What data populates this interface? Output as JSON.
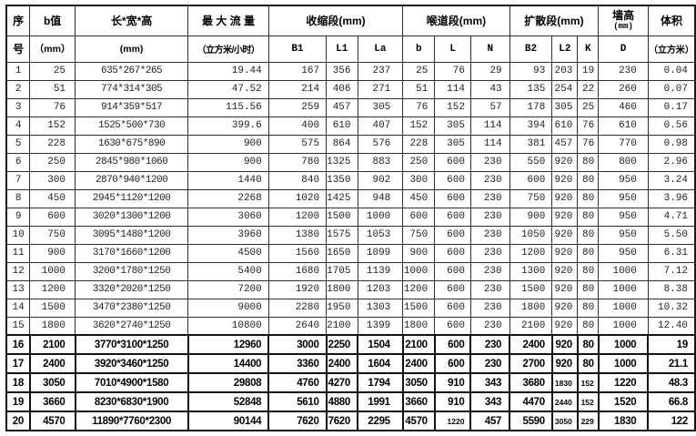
{
  "table": {
    "title": "venturi-flume-specification-table",
    "header_row1": [
      {
        "label": "序"
      },
      {
        "label": "b值"
      },
      {
        "label": "长*宽*高"
      },
      {
        "label": "最 大 流 量"
      },
      {
        "label": "收缩段(mm)",
        "span": 3
      },
      {
        "label": "喉道段(mm)",
        "span": 3
      },
      {
        "label": "扩散段(mm)",
        "span": 3
      },
      {
        "label": "墙高",
        "sub": "(mm)"
      },
      {
        "label": "体积"
      }
    ],
    "header_row2": [
      "号",
      "（mm）",
      "(mm)",
      "（立方米/小时）",
      "B1",
      "L1",
      "La",
      "b",
      "L",
      "N",
      "B2",
      "L2",
      "K",
      "D",
      "（立方米）"
    ],
    "bold_from_row": 16,
    "rows": [
      [
        "1",
        "25",
        "635*267*265",
        "19.44",
        "167",
        "356",
        "237",
        "25",
        "76",
        "29",
        "93",
        "203",
        "19",
        "230",
        "0.04"
      ],
      [
        "2",
        "51",
        "774*314*305",
        "47.52",
        "214",
        "406",
        "271",
        "51",
        "114",
        "43",
        "135",
        "254",
        "22",
        "260",
        "0.07"
      ],
      [
        "3",
        "76",
        "914*359*517",
        "115.56",
        "259",
        "457",
        "305",
        "76",
        "152",
        "57",
        "178",
        "305",
        "25",
        "460",
        "0.17"
      ],
      [
        "4",
        "152",
        "1525*500*730",
        "399.6",
        "400",
        "610",
        "407",
        "152",
        "305",
        "114",
        "394",
        "610",
        "76",
        "610",
        "0.56"
      ],
      [
        "5",
        "228",
        "1630*675*890",
        "900",
        "575",
        "864",
        "576",
        "228",
        "305",
        "114",
        "381",
        "457",
        "76",
        "770",
        "0.98"
      ],
      [
        "6",
        "250",
        "2845*980*1060",
        "900",
        "780",
        "1325",
        "883",
        "250",
        "600",
        "230",
        "550",
        "920",
        "80",
        "800",
        "2.96"
      ],
      [
        "7",
        "300",
        "2870*940*1200",
        "1440",
        "840",
        "1350",
        "902",
        "300",
        "600",
        "230",
        "600",
        "920",
        "80",
        "950",
        "3.24"
      ],
      [
        "8",
        "450",
        "2945*1120*1200",
        "2268",
        "1020",
        "1425",
        "948",
        "450",
        "600",
        "230",
        "750",
        "920",
        "80",
        "950",
        "3.96"
      ],
      [
        "9",
        "600",
        "3020*1300*1200",
        "3060",
        "1200",
        "1500",
        "1000",
        "600",
        "600",
        "230",
        "900",
        "920",
        "80",
        "950",
        "4.71"
      ],
      [
        "10",
        "750",
        "3095*1480*1200",
        "3960",
        "1380",
        "1575",
        "1053",
        "750",
        "600",
        "230",
        "1050",
        "920",
        "80",
        "950",
        "5.50"
      ],
      [
        "11",
        "900",
        "3170*1660*1200",
        "4500",
        "1560",
        "1650",
        "1099",
        "900",
        "600",
        "230",
        "1200",
        "920",
        "80",
        "950",
        "6.31"
      ],
      [
        "12",
        "1000",
        "3200*1780*1250",
        "5400",
        "1680",
        "1705",
        "1139",
        "1000",
        "600",
        "230",
        "1300",
        "920",
        "80",
        "1000",
        "7.12"
      ],
      [
        "13",
        "1200",
        "3320*2020*1250",
        "7200",
        "1920",
        "1800",
        "1203",
        "1200",
        "600",
        "230",
        "1500",
        "920",
        "80",
        "1000",
        "8.38"
      ],
      [
        "14",
        "1500",
        "3470*2380*1250",
        "9000",
        "2280",
        "1950",
        "1303",
        "1500",
        "600",
        "230",
        "1800",
        "920",
        "80",
        "1000",
        "10.32"
      ],
      [
        "15",
        "1800",
        "3620*2740*1250",
        "10800",
        "2640",
        "2100",
        "1399",
        "1800",
        "600",
        "230",
        "2100",
        "920",
        "80",
        "1000",
        "12.40"
      ],
      [
        "16",
        "2100",
        "3770*3100*1250",
        "12960",
        "3000",
        "2250",
        "1504",
        "2100",
        "600",
        "230",
        "2400",
        "920",
        "80",
        "1000",
        "19"
      ],
      [
        "17",
        "2400",
        "3920*3460*1250",
        "14400",
        "3360",
        "2400",
        "1604",
        "2400",
        "600",
        "230",
        "2700",
        "920",
        "80",
        "1000",
        "21.1"
      ],
      [
        "18",
        "3050",
        "7010*4900*1580",
        "29808",
        "4760",
        "4270",
        "1794",
        "3050",
        "910",
        "343",
        "3680",
        "1830",
        "152",
        "1220",
        "48.3"
      ],
      [
        "19",
        "3660",
        "8230*6830*1900",
        "52848",
        "5610",
        "4880",
        "1991",
        "3660",
        "910",
        "343",
        "4470",
        "2440",
        "152",
        "1520",
        "66.8"
      ],
      [
        "20",
        "4570",
        "11890*7760*2300",
        "90144",
        "7620",
        "7620",
        "2295",
        "4570",
        "1220",
        "457",
        "5590",
        "3050",
        "229",
        "1830",
        "122"
      ]
    ]
  }
}
